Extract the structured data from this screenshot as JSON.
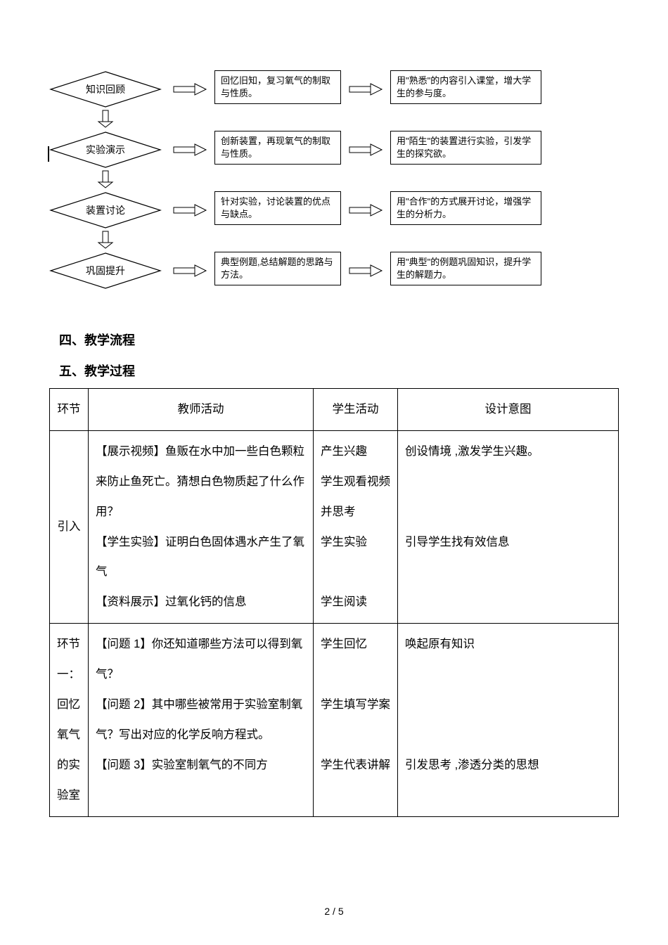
{
  "flowchart": {
    "rows": [
      {
        "diamond": "知识回顾",
        "box1": "回忆旧知，复习氧气的制取与性质。",
        "box2": "用\"熟悉\"的内容引入课堂，增大学生的参与度。"
      },
      {
        "diamond": "实验演示",
        "box1": "创新装置，再现氧气的制取与性质。",
        "box2": "用\"陌生\"的装置进行实验，引发学生的探究欲。"
      },
      {
        "diamond": "装置讨论",
        "box1": "针对实验，讨论装置的优点与缺点。",
        "box2": "用\"合作\"的方式展开讨论，增强学生的分析力。"
      },
      {
        "diamond": "巩固提升",
        "box1": "典型例题,总结解题的思路与方法。",
        "box2": "用\"典型\"的例题巩固知识，提升学生的解题力。"
      }
    ]
  },
  "headings": {
    "h4": "四、教学流程",
    "h5": "五、教学过程"
  },
  "table": {
    "headers": [
      "环节",
      "教师活动",
      "学生活动",
      "设计意图"
    ],
    "rows": [
      {
        "stage": "引入",
        "teacher": "【展示视频】鱼贩在水中加一些白色颗粒来防止鱼死亡。猜想白色物质起了什么作用？\n【学生实验】证明白色固体遇水产生了氧气\n【资料展示】过氧化钙的信息",
        "student": "产生兴趣\n学生观看视频并思考\n学生实验\n\n学生阅读",
        "intent": "创设情境 ,激发学生兴趣。\n\n\n引导学生找有效信息"
      },
      {
        "stage": "环节一：\n回忆氧气的实验室",
        "teacher": "【问题 1】你还知道哪些方法可以得到氧气？\n【问题 2】其中哪些被常用于实验室制氧气？写出对应的化学反响方程式。\n【问题 3】实验室制氧气的不同方",
        "student": "学生回忆\n\n学生填写学案\n\n学生代表讲解",
        "intent": "唤起原有知识\n\n\n\n引发思考 ,渗透分类的思想"
      }
    ]
  },
  "pageNumber": "2 / 5",
  "colors": {
    "line": "#000000",
    "bg": "#ffffff"
  }
}
